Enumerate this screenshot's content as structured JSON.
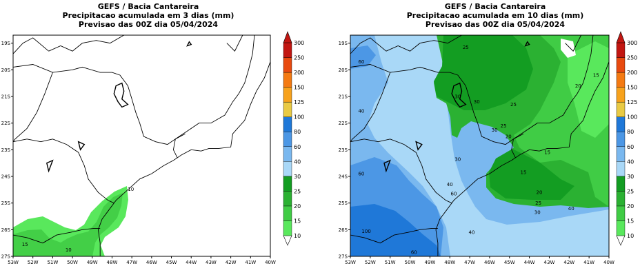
{
  "maps": [
    {
      "title_lines": [
        "GEFS / Bacia Cantareira",
        "Precipitacao acumulada em 3 dias (mm)",
        "Previsao das 00Z dia 05/04/2024"
      ],
      "contour_labels": [
        {
          "text": "10",
          "lon": -47.05,
          "lat": -24.48
        },
        {
          "text": "15",
          "lon": -52.4,
          "lat": -26.55
        },
        {
          "text": "10",
          "lon": -50.2,
          "lat": -26.75
        }
      ]
    },
    {
      "title_lines": [
        "GEFS / Bacia Cantareira",
        "Precipitacao acumulada em 10 dias (mm)",
        "Previsao das 00Z dia 05/04/2024"
      ],
      "contour_labels": [
        {
          "text": "60",
          "lon": -52.45,
          "lat": -19.7
        },
        {
          "text": "25",
          "lon": -47.2,
          "lat": -19.15
        },
        {
          "text": "15",
          "lon": -40.65,
          "lat": -20.2
        },
        {
          "text": "20",
          "lon": -41.55,
          "lat": -20.6
        },
        {
          "text": "30",
          "lon": -47.6,
          "lat": -21.0
        },
        {
          "text": "30",
          "lon": -46.65,
          "lat": -21.2
        },
        {
          "text": "25",
          "lon": -44.8,
          "lat": -21.3
        },
        {
          "text": "40",
          "lon": -52.45,
          "lat": -21.55
        },
        {
          "text": "30",
          "lon": -45.75,
          "lat": -22.25
        },
        {
          "text": "25",
          "lon": -45.3,
          "lat": -22.1
        },
        {
          "text": "20",
          "lon": -45.05,
          "lat": -22.5
        },
        {
          "text": "15",
          "lon": -43.1,
          "lat": -23.1
        },
        {
          "text": "30",
          "lon": -47.6,
          "lat": -23.35
        },
        {
          "text": "15",
          "lon": -44.3,
          "lat": -23.85
        },
        {
          "text": "60",
          "lon": -52.45,
          "lat": -23.9
        },
        {
          "text": "40",
          "lon": -48.0,
          "lat": -24.3
        },
        {
          "text": "20",
          "lon": -43.5,
          "lat": -24.6
        },
        {
          "text": "60",
          "lon": -47.8,
          "lat": -24.65
        },
        {
          "text": "25",
          "lon": -43.55,
          "lat": -25.0
        },
        {
          "text": "30",
          "lon": -43.6,
          "lat": -25.35
        },
        {
          "text": "40",
          "lon": -41.9,
          "lat": -25.2
        },
        {
          "text": "40",
          "lon": -46.9,
          "lat": -26.1
        },
        {
          "text": "100",
          "lon": -52.2,
          "lat": -26.05
        },
        {
          "text": "60",
          "lon": -49.8,
          "lat": -26.85
        }
      ]
    }
  ],
  "axes": {
    "lon_ticks": [
      "53W",
      "52W",
      "51W",
      "50W",
      "49W",
      "48W",
      "47W",
      "46W",
      "45W",
      "44W",
      "43W",
      "42W",
      "41W",
      "40W"
    ],
    "lat_ticks": [
      "19S",
      "20S",
      "21S",
      "22S",
      "23S",
      "24S",
      "25S",
      "26S",
      "27S"
    ],
    "lon_range": [
      -53,
      -40
    ],
    "lat_range": [
      -27,
      -18.7
    ]
  },
  "colorbar": {
    "levels": [
      "10",
      "15",
      "20",
      "25",
      "30",
      "40",
      "60",
      "80",
      "100",
      "125",
      "150",
      "200",
      "250",
      "300"
    ],
    "colors": [
      "#ffffff",
      "#59e85c",
      "#40cc45",
      "#2bb132",
      "#139d22",
      "#a9d8f7",
      "#7ab8ef",
      "#4c97e5",
      "#1f78d8",
      "#e9ca44",
      "#f7a21c",
      "#f47a12",
      "#e84a0f",
      "#c21611"
    ]
  }
}
